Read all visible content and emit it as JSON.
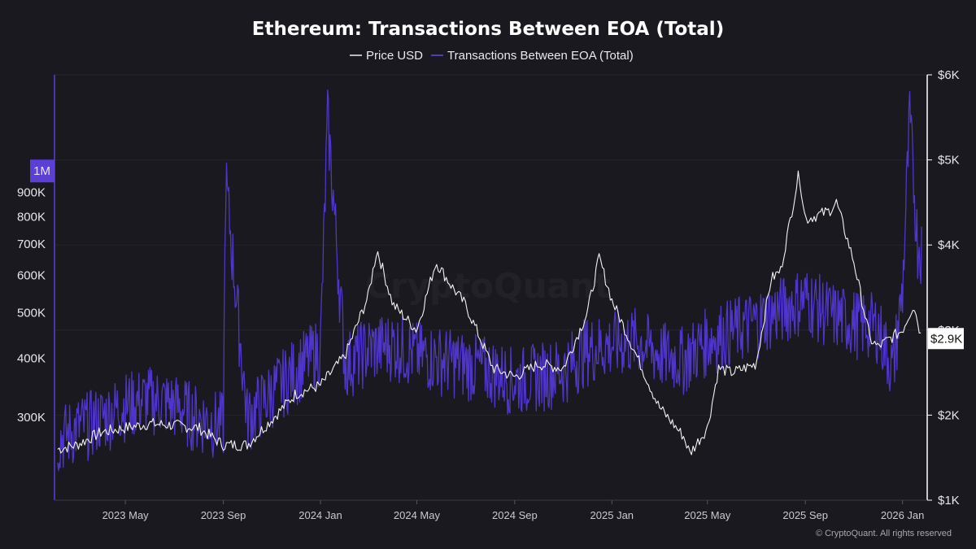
{
  "chart_data": {
    "type": "line",
    "title": "Ethereum: Transactions Between EOA (Total)",
    "watermark": "CryptoQuant",
    "credit": "© CryptoQuant. All rights reserved",
    "legend": [
      {
        "name": "Price USD",
        "color": "#ffffff"
      },
      {
        "name": "Transactions Between EOA (Total)",
        "color": "#5b3fd6"
      }
    ],
    "x_range": [
      "2023-02-01",
      "2026-02-01"
    ],
    "x_ticks": [
      "2023 May",
      "2023 Sep",
      "2024 Jan",
      "2024 May",
      "2024 Sep",
      "2025 Jan",
      "2025 May",
      "2025 Sep",
      "2026 Jan"
    ],
    "y_left": {
      "scale": "log",
      "range": [
        200000,
        1600000
      ],
      "ticks": [
        "300K",
        "400K",
        "500K",
        "600K",
        "700K",
        "800K",
        "900K"
      ],
      "tick_values": [
        300000,
        400000,
        500000,
        600000,
        700000,
        800000,
        900000
      ],
      "highlight_label": "1M",
      "highlight_value": 1000000
    },
    "y_right": {
      "scale": "linear",
      "range": [
        1000,
        6000
      ],
      "ticks": [
        "$1K",
        "$2K",
        "$3K",
        "$4K",
        "$5K",
        "$6K"
      ],
      "tick_values": [
        1000,
        2000,
        3000,
        4000,
        5000,
        6000
      ],
      "current_label": "$2.9K",
      "current_value": 2900
    },
    "series": [
      {
        "name": "Price USD",
        "axis": "right",
        "color": "#ffffff",
        "x": [
          "2023-02-05",
          "2023-03-01",
          "2023-04-01",
          "2023-05-01",
          "2023-06-01",
          "2023-07-01",
          "2023-08-01",
          "2023-09-01",
          "2023-10-01",
          "2023-11-01",
          "2023-12-01",
          "2024-01-01",
          "2024-02-01",
          "2024-03-01",
          "2024-03-12",
          "2024-04-01",
          "2024-05-01",
          "2024-05-25",
          "2024-06-15",
          "2024-07-01",
          "2024-08-05",
          "2024-09-01",
          "2024-10-01",
          "2024-11-01",
          "2024-12-01",
          "2024-12-16",
          "2025-01-01",
          "2025-02-01",
          "2025-03-01",
          "2025-04-01",
          "2025-04-09",
          "2025-05-01",
          "2025-05-15",
          "2025-06-01",
          "2025-07-01",
          "2025-07-20",
          "2025-08-01",
          "2025-08-24",
          "2025-09-01",
          "2025-10-01",
          "2025-10-10",
          "2025-11-01",
          "2025-11-21",
          "2025-12-01",
          "2026-01-01",
          "2026-01-15",
          "2026-01-25"
        ],
        "values": [
          1600,
          1650,
          1800,
          1850,
          1900,
          1880,
          1850,
          1650,
          1650,
          1950,
          2250,
          2350,
          2700,
          3400,
          3950,
          3300,
          3000,
          3800,
          3500,
          3300,
          2550,
          2450,
          2600,
          2550,
          3200,
          3850,
          3350,
          2700,
          2100,
          1750,
          1550,
          1850,
          2550,
          2500,
          2600,
          3600,
          3700,
          4850,
          4300,
          4400,
          4500,
          3800,
          2900,
          2800,
          3000,
          3300,
          2900
        ]
      },
      {
        "name": "Transactions Between EOA (Total)",
        "axis": "left",
        "color": "#5b3fd6",
        "x": [
          "2023-02-05",
          "2023-03-01",
          "2023-04-01",
          "2023-05-01",
          "2023-06-01",
          "2023-07-01",
          "2023-08-01",
          "2023-09-01",
          "2023-09-04",
          "2023-10-01",
          "2023-11-01",
          "2023-12-01",
          "2024-01-01",
          "2024-01-10",
          "2024-02-01",
          "2024-03-01",
          "2024-04-01",
          "2024-05-01",
          "2024-06-01",
          "2024-07-01",
          "2024-08-01",
          "2024-09-01",
          "2024-10-01",
          "2024-11-01",
          "2024-12-01",
          "2025-01-01",
          "2025-02-01",
          "2025-03-01",
          "2025-04-01",
          "2025-05-01",
          "2025-06-01",
          "2025-07-01",
          "2025-08-01",
          "2025-09-01",
          "2025-10-01",
          "2025-11-01",
          "2025-12-01",
          "2025-12-20",
          "2026-01-01",
          "2026-01-10",
          "2026-01-20",
          "2026-01-25"
        ],
        "values": [
          270000,
          285000,
          300000,
          320000,
          330000,
          320000,
          300000,
          290000,
          960000,
          300000,
          340000,
          380000,
          420000,
          1300000,
          390000,
          420000,
          430000,
          410000,
          400000,
          390000,
          380000,
          360000,
          370000,
          380000,
          420000,
          430000,
          440000,
          410000,
          400000,
          440000,
          460000,
          480000,
          510000,
          540000,
          500000,
          480000,
          470000,
          380000,
          560000,
          1300000,
          700000,
          690000
        ]
      }
    ]
  }
}
